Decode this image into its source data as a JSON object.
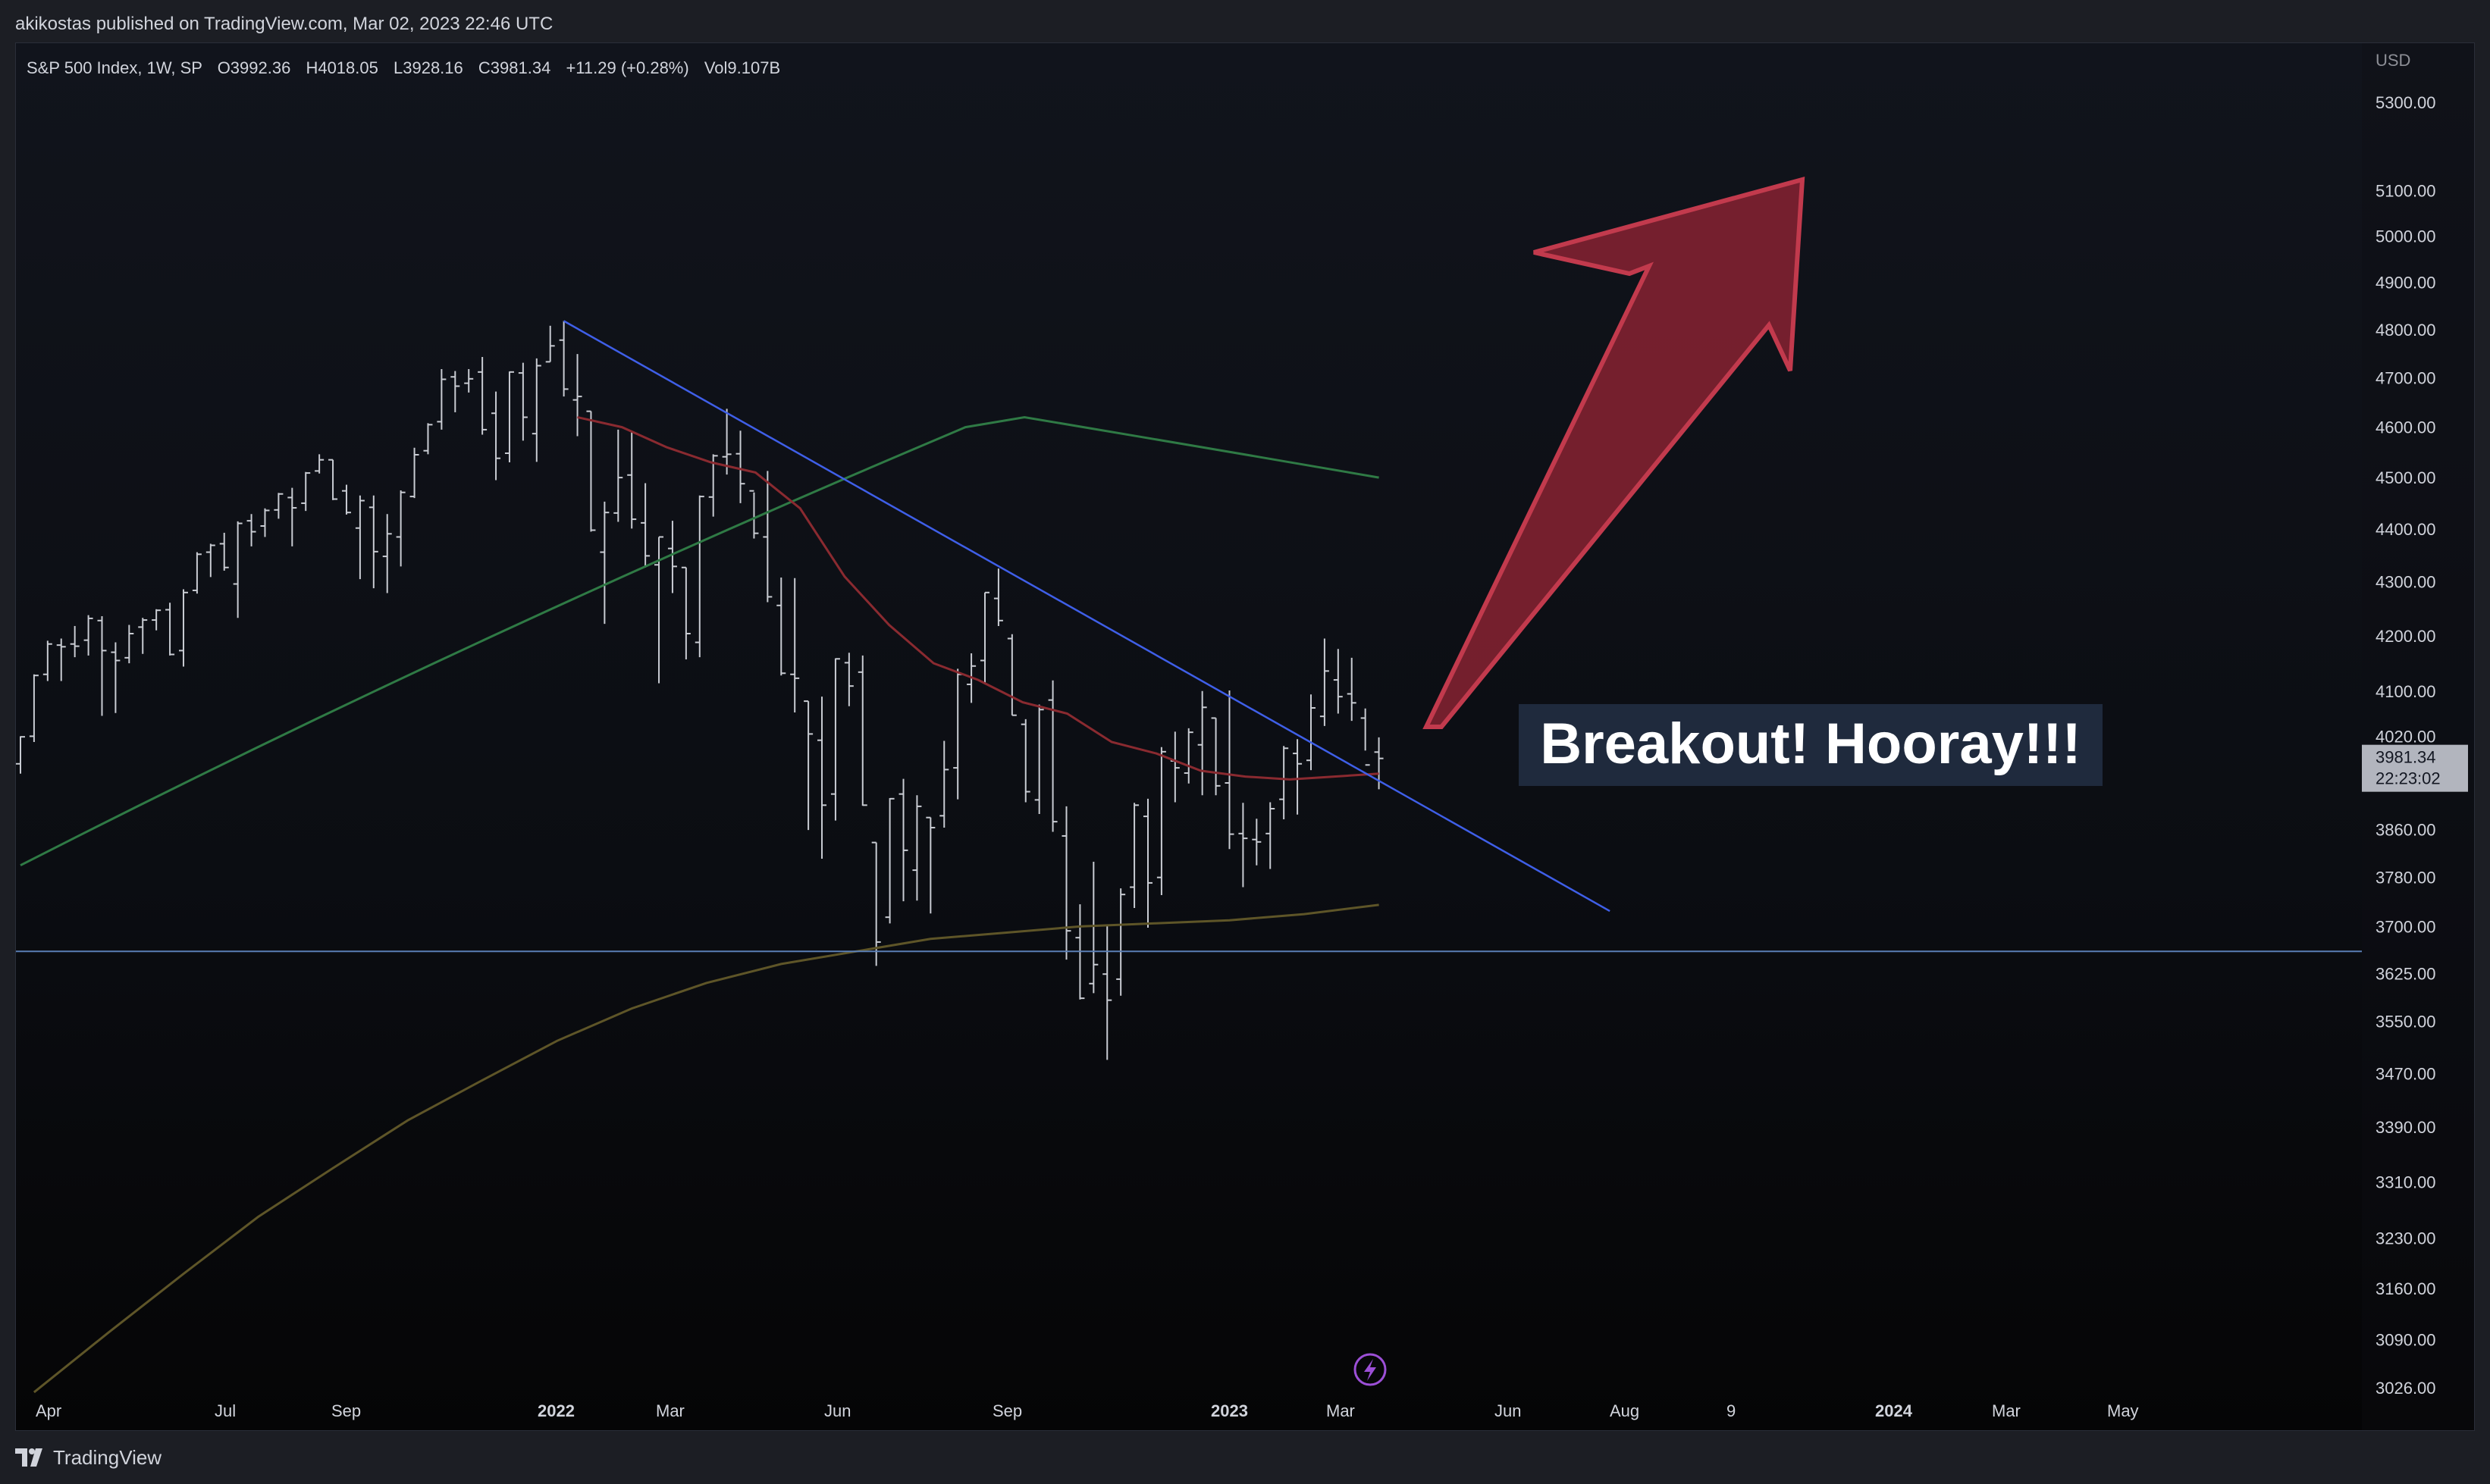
{
  "header": {
    "publisher_line": "akikostas published on TradingView.com, Mar 02, 2023 22:46 UTC"
  },
  "legend": {
    "symbol": "S&P 500 Index, 1W, SP",
    "open": "O3992.36",
    "high": "H4018.05",
    "low": "L3928.16",
    "close": "C3981.34",
    "change": "+11.29 (+0.28%)",
    "volume": "Vol9.107B"
  },
  "price_scale": {
    "currency": "USD",
    "ticks": [
      "5300.00",
      "5100.00",
      "5000.00",
      "4900.00",
      "4800.00",
      "4700.00",
      "4600.00",
      "4500.00",
      "4400.00",
      "4300.00",
      "4200.00",
      "4100.00",
      "4020.00",
      "3860.00",
      "3780.00",
      "3700.00",
      "3625.00",
      "3550.00",
      "3470.00",
      "3390.00",
      "3310.00",
      "3230.00",
      "3160.00",
      "3090.00",
      "3026.00"
    ],
    "last_price": "3981.34",
    "countdown": "22:23:02"
  },
  "time_scale": {
    "ticks": [
      {
        "label": "Apr",
        "bold": false
      },
      {
        "label": "Jul",
        "bold": false
      },
      {
        "label": "Sep",
        "bold": false
      },
      {
        "label": "2022",
        "bold": true
      },
      {
        "label": "Mar",
        "bold": false
      },
      {
        "label": "Jun",
        "bold": false
      },
      {
        "label": "Sep",
        "bold": false
      },
      {
        "label": "2023",
        "bold": true
      },
      {
        "label": "Mar",
        "bold": false
      },
      {
        "label": "Jun",
        "bold": false
      },
      {
        "label": "Aug",
        "bold": false
      },
      {
        "label": "9",
        "bold": false
      },
      {
        "label": "2024",
        "bold": true
      },
      {
        "label": "Mar",
        "bold": false
      },
      {
        "label": "May",
        "bold": false
      }
    ]
  },
  "annotation": {
    "text": "Breakout! Hooray!!!"
  },
  "footer": {
    "brand": "TradingView"
  },
  "colors": {
    "bars": "#c9ccd3",
    "ma_green": "#2f7a45",
    "ma_red": "#8a2a30",
    "ma_olive": "#5e5528",
    "trendline": "#3f5fe8",
    "support": "#5a7fb5",
    "arrow_fill": "#7e2130",
    "arrow_stroke": "#c23a4d",
    "label_bg": "#1f2a3d",
    "label_text": "#ffffff",
    "text": "#d1d4dc",
    "last_price_bg": "#b2b5be"
  },
  "chart_data": {
    "type": "ohlc",
    "symbol": "S&P 500 Index",
    "interval": "1W",
    "y_scale": "log",
    "ylim": [
      3000,
      5300
    ],
    "x_range": [
      "2021-03-29",
      "2024-06-03"
    ],
    "bars": [
      {
        "date": "2021-03-29",
        "open": 3972,
        "high": 4020,
        "low": 3955,
        "close": 4019
      },
      {
        "date": "2021-04-05",
        "open": 4020,
        "high": 4130,
        "low": 4010,
        "close": 4128
      },
      {
        "date": "2021-04-12",
        "open": 4130,
        "high": 4191,
        "low": 4118,
        "close": 4185
      },
      {
        "date": "2021-04-19",
        "open": 4183,
        "high": 4195,
        "low": 4118,
        "close": 4180
      },
      {
        "date": "2021-04-26",
        "open": 4185,
        "high": 4218,
        "low": 4161,
        "close": 4181
      },
      {
        "date": "2021-05-03",
        "open": 4192,
        "high": 4238,
        "low": 4164,
        "close": 4232
      },
      {
        "date": "2021-05-10",
        "open": 4228,
        "high": 4236,
        "low": 4056,
        "close": 4173
      },
      {
        "date": "2021-05-17",
        "open": 4170,
        "high": 4188,
        "low": 4061,
        "close": 4155
      },
      {
        "date": "2021-05-24",
        "open": 4160,
        "high": 4220,
        "low": 4150,
        "close": 4204
      },
      {
        "date": "2021-05-31",
        "open": 4216,
        "high": 4233,
        "low": 4167,
        "close": 4229
      },
      {
        "date": "2021-06-07",
        "open": 4229,
        "high": 4249,
        "low": 4210,
        "close": 4247
      },
      {
        "date": "2021-06-14",
        "open": 4248,
        "high": 4261,
        "low": 4164,
        "close": 4166
      },
      {
        "date": "2021-06-21",
        "open": 4173,
        "high": 4286,
        "low": 4144,
        "close": 4280
      },
      {
        "date": "2021-06-28",
        "open": 4284,
        "high": 4356,
        "low": 4278,
        "close": 4352
      },
      {
        "date": "2021-07-05",
        "open": 4356,
        "high": 4372,
        "low": 4309,
        "close": 4369
      },
      {
        "date": "2021-07-12",
        "open": 4372,
        "high": 4393,
        "low": 4321,
        "close": 4327
      },
      {
        "date": "2021-07-19",
        "open": 4296,
        "high": 4415,
        "low": 4233,
        "close": 4411
      },
      {
        "date": "2021-07-26",
        "open": 4416,
        "high": 4429,
        "low": 4367,
        "close": 4395
      },
      {
        "date": "2021-08-02",
        "open": 4406,
        "high": 4440,
        "low": 4385,
        "close": 4436
      },
      {
        "date": "2021-08-09",
        "open": 4437,
        "high": 4470,
        "low": 4420,
        "close": 4468
      },
      {
        "date": "2021-08-16",
        "open": 4461,
        "high": 4480,
        "low": 4367,
        "close": 4441
      },
      {
        "date": "2021-08-23",
        "open": 4450,
        "high": 4511,
        "low": 4435,
        "close": 4509
      },
      {
        "date": "2021-08-30",
        "open": 4513,
        "high": 4546,
        "low": 4508,
        "close": 4535
      },
      {
        "date": "2021-09-06",
        "open": 4535,
        "high": 4535,
        "low": 4456,
        "close": 4458
      },
      {
        "date": "2021-09-13",
        "open": 4474,
        "high": 4486,
        "low": 4428,
        "close": 4432
      },
      {
        "date": "2021-09-20",
        "open": 4402,
        "high": 4465,
        "low": 4305,
        "close": 4455
      },
      {
        "date": "2021-09-27",
        "open": 4442,
        "high": 4465,
        "low": 4288,
        "close": 4357
      },
      {
        "date": "2021-10-04",
        "open": 4348,
        "high": 4429,
        "low": 4279,
        "close": 4391
      },
      {
        "date": "2021-10-11",
        "open": 4385,
        "high": 4475,
        "low": 4329,
        "close": 4471
      },
      {
        "date": "2021-10-18",
        "open": 4463,
        "high": 4559,
        "low": 4460,
        "close": 4545
      },
      {
        "date": "2021-10-25",
        "open": 4553,
        "high": 4608,
        "low": 4546,
        "close": 4605
      },
      {
        "date": "2021-11-01",
        "open": 4611,
        "high": 4718,
        "low": 4595,
        "close": 4697
      },
      {
        "date": "2021-11-08",
        "open": 4702,
        "high": 4714,
        "low": 4630,
        "close": 4683
      },
      {
        "date": "2021-11-15",
        "open": 4689,
        "high": 4718,
        "low": 4670,
        "close": 4698
      },
      {
        "date": "2021-11-22",
        "open": 4712,
        "high": 4743,
        "low": 4585,
        "close": 4595
      },
      {
        "date": "2021-11-29",
        "open": 4628,
        "high": 4672,
        "low": 4495,
        "close": 4538
      },
      {
        "date": "2021-12-06",
        "open": 4548,
        "high": 4713,
        "low": 4530,
        "close": 4712
      },
      {
        "date": "2021-12-13",
        "open": 4710,
        "high": 4731,
        "low": 4573,
        "close": 4620
      },
      {
        "date": "2021-12-20",
        "open": 4587,
        "high": 4740,
        "low": 4531,
        "close": 4725
      },
      {
        "date": "2021-12-27",
        "open": 4733,
        "high": 4808,
        "low": 4733,
        "close": 4766
      },
      {
        "date": "2022-01-03",
        "open": 4778,
        "high": 4818,
        "low": 4662,
        "close": 4677
      },
      {
        "date": "2022-01-10",
        "open": 4655,
        "high": 4749,
        "low": 4582,
        "close": 4662
      },
      {
        "date": "2022-01-17",
        "open": 4632,
        "high": 4632,
        "low": 4395,
        "close": 4398
      },
      {
        "date": "2022-01-24",
        "open": 4356,
        "high": 4453,
        "low": 4222,
        "close": 4432
      },
      {
        "date": "2022-01-31",
        "open": 4431,
        "high": 4595,
        "low": 4414,
        "close": 4500
      },
      {
        "date": "2022-02-07",
        "open": 4505,
        "high": 4590,
        "low": 4401,
        "close": 4419
      },
      {
        "date": "2022-02-14",
        "open": 4412,
        "high": 4489,
        "low": 4327,
        "close": 4349
      },
      {
        "date": "2022-02-21",
        "open": 4332,
        "high": 4385,
        "low": 4114,
        "close": 4385
      },
      {
        "date": "2022-02-28",
        "open": 4363,
        "high": 4416,
        "low": 4279,
        "close": 4329
      },
      {
        "date": "2022-03-07",
        "open": 4327,
        "high": 4327,
        "low": 4157,
        "close": 4204
      },
      {
        "date": "2022-03-14",
        "open": 4188,
        "high": 4465,
        "low": 4161,
        "close": 4463
      },
      {
        "date": "2022-03-21",
        "open": 4462,
        "high": 4546,
        "low": 4424,
        "close": 4543
      },
      {
        "date": "2022-03-28",
        "open": 4541,
        "high": 4637,
        "low": 4506,
        "close": 4546
      },
      {
        "date": "2022-04-04",
        "open": 4547,
        "high": 4593,
        "low": 4450,
        "close": 4488
      },
      {
        "date": "2022-04-11",
        "open": 4474,
        "high": 4471,
        "low": 4382,
        "close": 4392
      },
      {
        "date": "2022-04-18",
        "open": 4385,
        "high": 4513,
        "low": 4262,
        "close": 4272
      },
      {
        "date": "2022-04-25",
        "open": 4256,
        "high": 4308,
        "low": 4128,
        "close": 4132
      },
      {
        "date": "2022-05-02",
        "open": 4130,
        "high": 4307,
        "low": 4062,
        "close": 4123
      },
      {
        "date": "2022-05-09",
        "open": 4082,
        "high": 4082,
        "low": 3859,
        "close": 4024
      },
      {
        "date": "2022-05-16",
        "open": 4013,
        "high": 4090,
        "low": 3811,
        "close": 3901
      },
      {
        "date": "2022-05-23",
        "open": 3920,
        "high": 4159,
        "low": 3875,
        "close": 4158
      },
      {
        "date": "2022-05-30",
        "open": 4151,
        "high": 4169,
        "low": 4073,
        "close": 4109
      },
      {
        "date": "2022-06-06",
        "open": 4134,
        "high": 4164,
        "low": 3900,
        "close": 3901
      },
      {
        "date": "2022-06-13",
        "open": 3838,
        "high": 3838,
        "low": 3637,
        "close": 3675
      },
      {
        "date": "2022-06-20",
        "open": 3715,
        "high": 3913,
        "low": 3705,
        "close": 3912
      },
      {
        "date": "2022-06-27",
        "open": 3920,
        "high": 3946,
        "low": 3741,
        "close": 3825
      },
      {
        "date": "2022-07-04",
        "open": 3792,
        "high": 3918,
        "low": 3742,
        "close": 3899
      },
      {
        "date": "2022-07-11",
        "open": 3880,
        "high": 3880,
        "low": 3721,
        "close": 3863
      },
      {
        "date": "2022-07-18",
        "open": 3883,
        "high": 4012,
        "low": 3863,
        "close": 3962
      },
      {
        "date": "2022-07-25",
        "open": 3965,
        "high": 4140,
        "low": 3911,
        "close": 4130
      },
      {
        "date": "2022-08-01",
        "open": 4112,
        "high": 4168,
        "low": 4079,
        "close": 4145
      },
      {
        "date": "2022-08-08",
        "open": 4155,
        "high": 4280,
        "low": 4112,
        "close": 4280
      },
      {
        "date": "2022-08-15",
        "open": 4269,
        "high": 4325,
        "low": 4218,
        "close": 4228
      },
      {
        "date": "2022-08-22",
        "open": 4195,
        "high": 4203,
        "low": 4057,
        "close": 4057
      },
      {
        "date": "2022-08-29",
        "open": 4041,
        "high": 4050,
        "low": 3906,
        "close": 3924
      },
      {
        "date": "2022-09-05",
        "open": 3910,
        "high": 4076,
        "low": 3886,
        "close": 4067
      },
      {
        "date": "2022-09-12",
        "open": 4084,
        "high": 4119,
        "low": 3856,
        "close": 3873
      },
      {
        "date": "2022-09-19",
        "open": 3849,
        "high": 3899,
        "low": 3647,
        "close": 3693
      },
      {
        "date": "2022-09-26",
        "open": 3682,
        "high": 3736,
        "low": 3584,
        "close": 3586
      },
      {
        "date": "2022-10-03",
        "open": 3609,
        "high": 3806,
        "low": 3594,
        "close": 3639
      },
      {
        "date": "2022-10-10",
        "open": 3624,
        "high": 3702,
        "low": 3491,
        "close": 3583
      },
      {
        "date": "2022-10-17",
        "open": 3616,
        "high": 3762,
        "low": 3590,
        "close": 3752
      },
      {
        "date": "2022-10-24",
        "open": 3764,
        "high": 3905,
        "low": 3730,
        "close": 3901
      },
      {
        "date": "2022-10-31",
        "open": 3882,
        "high": 3912,
        "low": 3698,
        "close": 3771
      },
      {
        "date": "2022-11-07",
        "open": 3780,
        "high": 4001,
        "low": 3751,
        "close": 3993
      },
      {
        "date": "2022-11-14",
        "open": 3977,
        "high": 4028,
        "low": 3906,
        "close": 3965
      },
      {
        "date": "2022-11-21",
        "open": 3956,
        "high": 4034,
        "low": 3938,
        "close": 4027
      },
      {
        "date": "2022-11-28",
        "open": 4005,
        "high": 4100,
        "low": 3918,
        "close": 4071
      },
      {
        "date": "2022-12-05",
        "open": 4052,
        "high": 4052,
        "low": 3918,
        "close": 3934
      },
      {
        "date": "2022-12-12",
        "open": 3939,
        "high": 4101,
        "low": 3827,
        "close": 3852
      },
      {
        "date": "2022-12-19",
        "open": 3853,
        "high": 3905,
        "low": 3764,
        "close": 3845
      },
      {
        "date": "2022-12-26",
        "open": 3843,
        "high": 3878,
        "low": 3800,
        "close": 3839
      },
      {
        "date": "2023-01-02",
        "open": 3853,
        "high": 3906,
        "low": 3794,
        "close": 3895
      },
      {
        "date": "2023-01-09",
        "open": 3911,
        "high": 4003,
        "low": 3877,
        "close": 3999
      },
      {
        "date": "2023-01-16",
        "open": 3990,
        "high": 4015,
        "low": 3885,
        "close": 3972
      },
      {
        "date": "2023-01-23",
        "open": 3978,
        "high": 4094,
        "low": 3961,
        "close": 4070
      },
      {
        "date": "2023-01-30",
        "open": 4055,
        "high": 4195,
        "low": 4038,
        "close": 4136
      },
      {
        "date": "2023-02-06",
        "open": 4120,
        "high": 4176,
        "low": 4060,
        "close": 4090
      },
      {
        "date": "2023-02-13",
        "open": 4095,
        "high": 4160,
        "low": 4047,
        "close": 4079
      },
      {
        "date": "2023-02-20",
        "open": 4052,
        "high": 4069,
        "low": 3995,
        "close": 3970
      },
      {
        "date": "2023-02-27",
        "open": 3992.36,
        "high": 4018.05,
        "low": 3928.16,
        "close": 3981.34
      }
    ],
    "moving_averages": [
      {
        "color": "green",
        "values": [
          3800,
          3850,
          3900,
          3950,
          4000,
          4050,
          4100,
          4150,
          4200,
          4250,
          4300,
          4350,
          4400,
          4450,
          4500,
          4550,
          4600,
          4620,
          4600,
          4580,
          4560,
          4540,
          4520,
          4500
        ]
      },
      {
        "color": "red",
        "values": [
          4620,
          4600,
          4560,
          4530,
          4510,
          4440,
          4310,
          4220,
          4150,
          4120,
          4080,
          4060,
          4010,
          3990,
          3960,
          3950,
          3945,
          3950,
          3955
        ]
      },
      {
        "color": "olive",
        "values": [
          3020,
          3100,
          3180,
          3260,
          3330,
          3400,
          3460,
          3520,
          3570,
          3610,
          3640,
          3660,
          3680,
          3690,
          3700,
          3705,
          3710,
          3720,
          3735
        ]
      }
    ],
    "trendline": {
      "from": {
        "date": "2022-01-03",
        "price": 4818
      },
      "to": {
        "date": "2023-06-26",
        "price": 3725
      }
    },
    "support_level": 3660,
    "annotation": "Breakout! Hooray!!!"
  }
}
